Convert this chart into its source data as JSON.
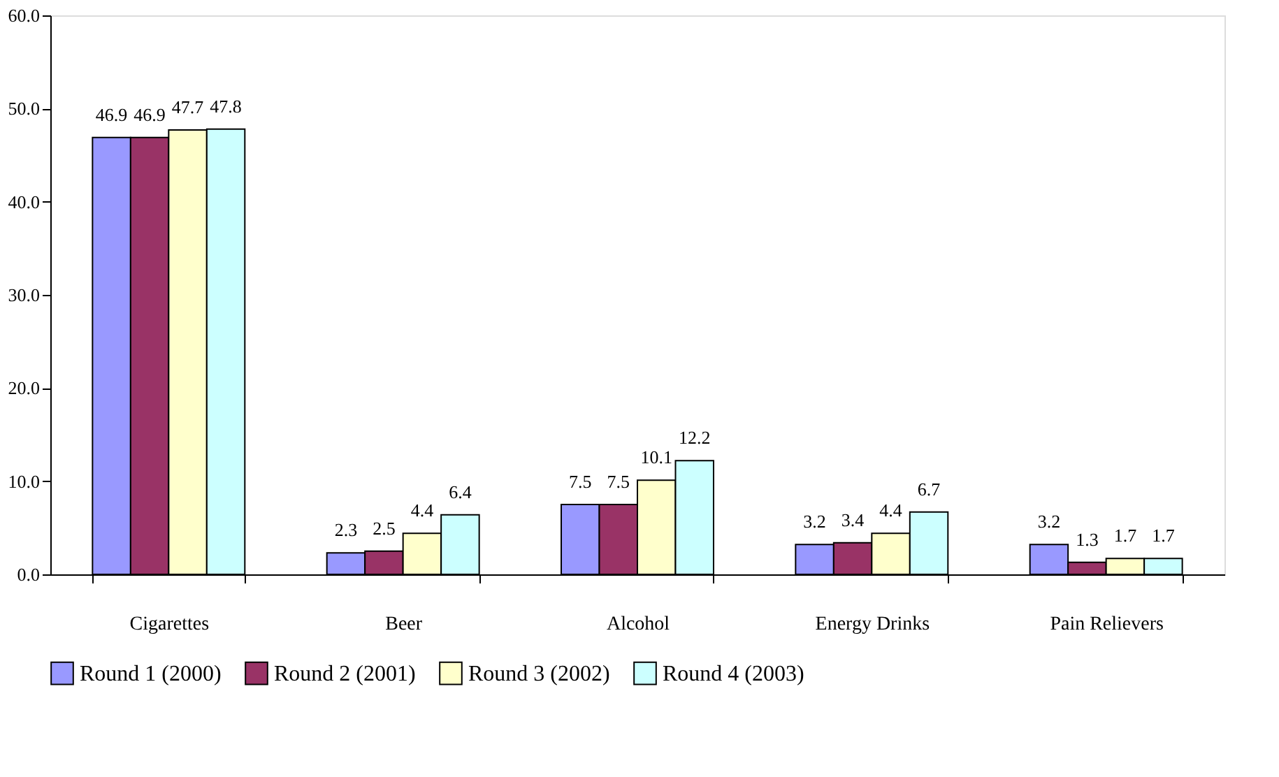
{
  "chart_data": {
    "type": "bar",
    "categories": [
      "Cigarettes",
      "Beer",
      "Alcohol",
      "Energy Drinks",
      "Pain Relievers"
    ],
    "series": [
      {
        "name": "Round 1 (2000)",
        "color": "#9999ff",
        "values": [
          46.9,
          2.3,
          7.5,
          3.2,
          3.2
        ]
      },
      {
        "name": "Round 2 (2001)",
        "color": "#993366",
        "values": [
          46.9,
          2.5,
          7.5,
          3.4,
          1.3
        ]
      },
      {
        "name": "Round 3 (2002)",
        "color": "#ffffcc",
        "values": [
          47.7,
          4.4,
          10.1,
          4.4,
          1.7
        ]
      },
      {
        "name": "Round 4 (2003)",
        "color": "#ccffff",
        "values": [
          47.8,
          6.4,
          12.2,
          6.7,
          1.7
        ]
      }
    ],
    "ylim": [
      0,
      60
    ],
    "yticks": [
      {
        "value": 0,
        "label": "0.0"
      },
      {
        "value": 10,
        "label": "10.0"
      },
      {
        "value": 20,
        "label": "20.0"
      },
      {
        "value": 30,
        "label": "30.0"
      },
      {
        "value": 40,
        "label": "40.0"
      },
      {
        "value": 50,
        "label": "50.0"
      },
      {
        "value": 60,
        "label": "60.0"
      }
    ],
    "data_labels": true,
    "grid": false,
    "legend": "bottom"
  }
}
